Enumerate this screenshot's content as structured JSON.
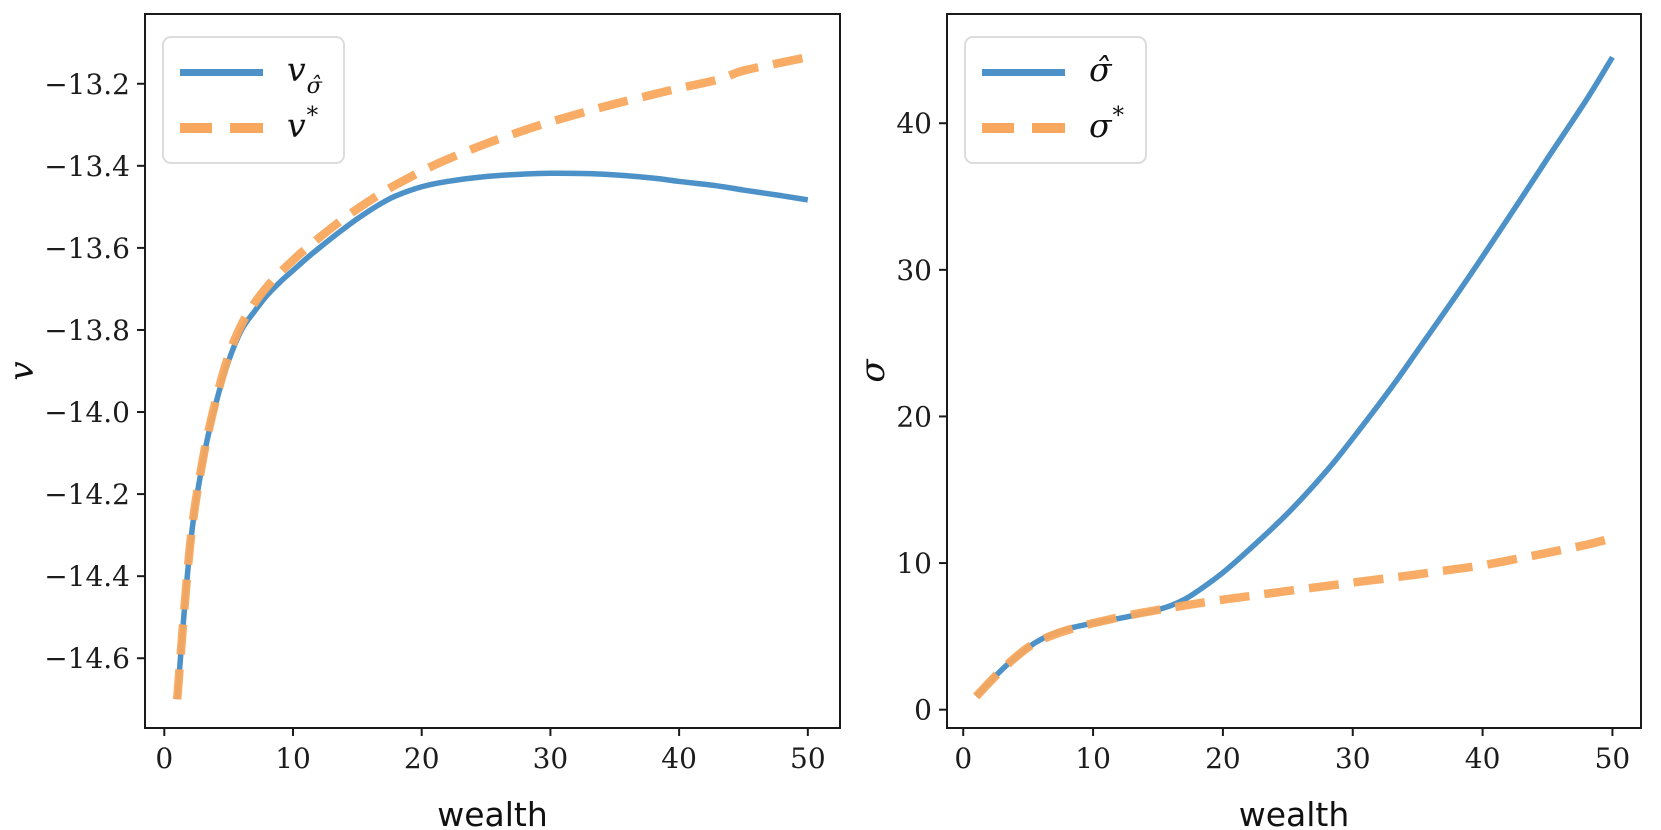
{
  "figure": {
    "background": "#ffffff",
    "spine_color": "#1a1a1a",
    "tick_label_color": "#1c1c1c"
  },
  "chart_data": [
    {
      "type": "line",
      "title": "",
      "xlabel": "wealth",
      "ylabel": "v",
      "xlim": [
        -1.5,
        52.5
      ],
      "ylim": [
        -14.77,
        -13.03
      ],
      "grid": false,
      "legend_position": "upper left",
      "xticks": [
        {
          "value": 0,
          "label": "0"
        },
        {
          "value": 10,
          "label": "10"
        },
        {
          "value": 20,
          "label": "20"
        },
        {
          "value": 30,
          "label": "30"
        },
        {
          "value": 40,
          "label": "40"
        },
        {
          "value": 50,
          "label": "50"
        }
      ],
      "yticks": [
        {
          "value": -13.2,
          "label": "−13.2"
        },
        {
          "value": -13.4,
          "label": "−13.4"
        },
        {
          "value": -13.6,
          "label": "−13.6"
        },
        {
          "value": -13.8,
          "label": "−13.8"
        },
        {
          "value": -14.0,
          "label": "−14.0"
        },
        {
          "value": -14.2,
          "label": "−14.2"
        },
        {
          "value": -14.4,
          "label": "−14.4"
        },
        {
          "value": -14.6,
          "label": "−14.6"
        }
      ],
      "legend": [
        {
          "base": "v",
          "sub": "σ̂",
          "sup": "",
          "line_style": "solid",
          "color": "#4c92c8"
        },
        {
          "base": "v",
          "sub": "",
          "sup": "*",
          "line_style": "dashed",
          "color": "#f8a85e"
        }
      ],
      "x": [
        1,
        2,
        3,
        4,
        5,
        6,
        7,
        8,
        9,
        10,
        11,
        12,
        13,
        14,
        15,
        16,
        17,
        18,
        20,
        22,
        25,
        28,
        30,
        33,
        35,
        38,
        40,
        43,
        45,
        48,
        50
      ],
      "series": [
        {
          "name": "v_sigma_hat",
          "color": "#4c92c8",
          "style": "solid",
          "width": 5.5,
          "values": [
            -14.7,
            -14.33,
            -14.12,
            -13.98,
            -13.875,
            -13.8,
            -13.755,
            -13.715,
            -13.683,
            -13.655,
            -13.627,
            -13.601,
            -13.576,
            -13.552,
            -13.529,
            -13.508,
            -13.489,
            -13.473,
            -13.451,
            -13.438,
            -13.426,
            -13.42,
            -13.418,
            -13.419,
            -13.422,
            -13.43,
            -13.438,
            -13.449,
            -13.459,
            -13.473,
            -13.483
          ]
        },
        {
          "name": "v_star",
          "color": "#f8a85e",
          "style": "dashed",
          "width": 8.5,
          "values": [
            -14.7,
            -14.325,
            -14.115,
            -13.972,
            -13.862,
            -13.787,
            -13.735,
            -13.694,
            -13.66,
            -13.63,
            -13.602,
            -13.576,
            -13.551,
            -13.527,
            -13.505,
            -13.484,
            -13.464,
            -13.446,
            -13.413,
            -13.384,
            -13.346,
            -13.313,
            -13.293,
            -13.266,
            -13.249,
            -13.226,
            -13.211,
            -13.19,
            -13.168,
            -13.148,
            -13.135
          ]
        }
      ]
    },
    {
      "type": "line",
      "title": "",
      "xlabel": "wealth",
      "ylabel": "σ",
      "xlim": [
        -1.25,
        52.2
      ],
      "ylim": [
        -1.25,
        47.45
      ],
      "grid": false,
      "legend_position": "upper left",
      "xticks": [
        {
          "value": 0,
          "label": "0"
        },
        {
          "value": 10,
          "label": "10"
        },
        {
          "value": 20,
          "label": "20"
        },
        {
          "value": 30,
          "label": "30"
        },
        {
          "value": 40,
          "label": "40"
        },
        {
          "value": 50,
          "label": "50"
        }
      ],
      "yticks": [
        {
          "value": 0,
          "label": "0"
        },
        {
          "value": 10,
          "label": "10"
        },
        {
          "value": 20,
          "label": "20"
        },
        {
          "value": 30,
          "label": "30"
        },
        {
          "value": 40,
          "label": "40"
        }
      ],
      "legend": [
        {
          "base": "σ̂",
          "sub": "",
          "sup": "",
          "line_style": "solid",
          "color": "#4c92c8"
        },
        {
          "base": "σ",
          "sub": "",
          "sup": "*",
          "line_style": "dashed",
          "color": "#f8a85e"
        }
      ],
      "x": [
        1,
        2,
        3,
        4,
        5,
        6,
        7,
        8,
        9,
        10,
        11,
        12,
        13,
        14,
        15,
        16,
        17,
        18,
        20,
        22,
        25,
        28,
        30,
        33,
        35,
        38,
        40,
        43,
        45,
        48,
        50
      ],
      "series": [
        {
          "name": "sigma_hat",
          "color": "#4c92c8",
          "style": "solid",
          "width": 5.5,
          "values": [
            0.9,
            1.85,
            2.75,
            3.55,
            4.25,
            4.8,
            5.2,
            5.5,
            5.72,
            5.9,
            6.06,
            6.22,
            6.4,
            6.6,
            6.82,
            7.1,
            7.5,
            8.05,
            9.35,
            10.9,
            13.4,
            16.3,
            18.5,
            22.0,
            24.5,
            28.3,
            30.9,
            34.9,
            37.6,
            41.6,
            44.5
          ]
        },
        {
          "name": "sigma_star",
          "color": "#f8a85e",
          "style": "dashed",
          "width": 8.5,
          "values": [
            0.9,
            1.85,
            2.75,
            3.55,
            4.25,
            4.75,
            5.12,
            5.42,
            5.67,
            5.9,
            6.1,
            6.3,
            6.48,
            6.65,
            6.8,
            6.95,
            7.1,
            7.24,
            7.5,
            7.74,
            8.1,
            8.44,
            8.67,
            9.0,
            9.23,
            9.6,
            9.85,
            10.35,
            10.7,
            11.25,
            11.7
          ]
        }
      ]
    }
  ]
}
